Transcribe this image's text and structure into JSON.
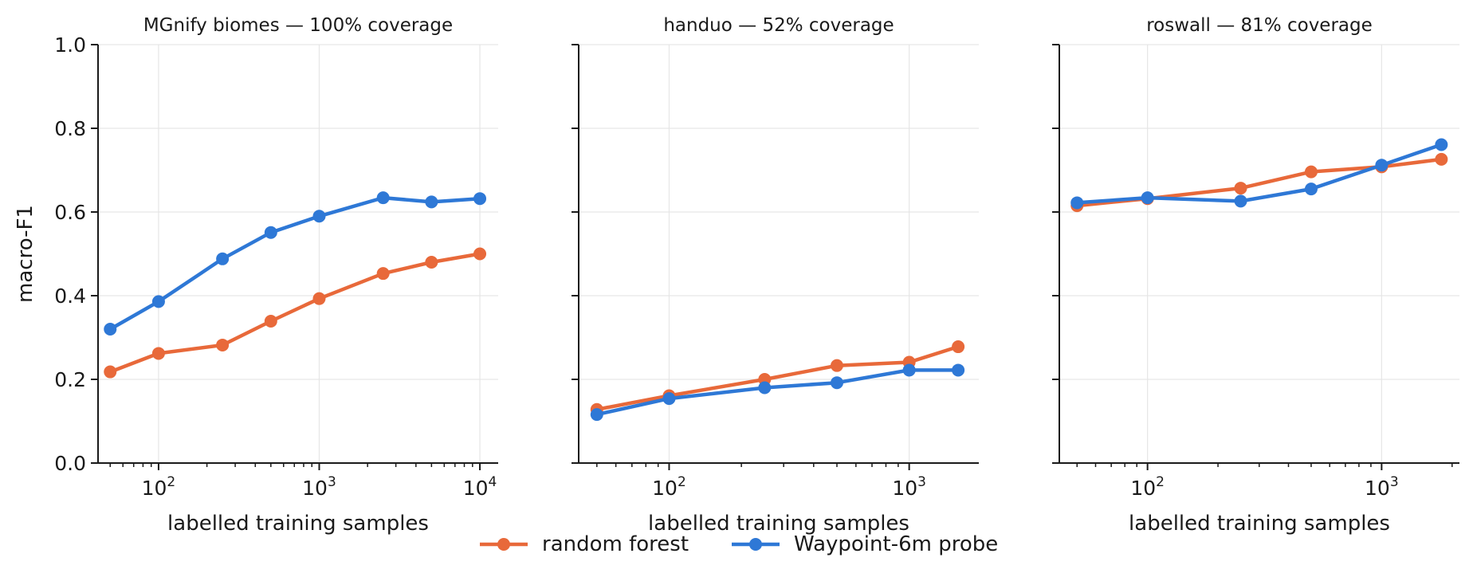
{
  "chart_data": [
    {
      "type": "line",
      "title": "MGnify biomes — 100% coverage",
      "xlabel": "labelled training samples",
      "ylabel": "macro-F1",
      "xscale": "log",
      "xlim": [
        42,
        13000
      ],
      "ylim": [
        0,
        1
      ],
      "xticks": [
        100,
        1000,
        10000
      ],
      "xtick_labels": [
        [
          "10",
          "2"
        ],
        [
          "10",
          "3"
        ],
        [
          "10",
          "4"
        ]
      ],
      "yticks": [
        0.0,
        0.2,
        0.4,
        0.6,
        0.8,
        1.0
      ],
      "ytick_labels": [
        "0.0",
        "0.2",
        "0.4",
        "0.6",
        "0.8",
        "1.0"
      ],
      "grid": true,
      "x": [
        50,
        100,
        250,
        500,
        1000,
        2500,
        5000,
        10000
      ],
      "series": [
        {
          "name": "random forest",
          "values": [
            0.218,
            0.262,
            0.282,
            0.339,
            0.393,
            0.453,
            0.48,
            0.5
          ]
        },
        {
          "name": "Waypoint-6m probe",
          "values": [
            0.32,
            0.386,
            0.488,
            0.551,
            0.59,
            0.634,
            0.624,
            0.632
          ]
        }
      ]
    },
    {
      "type": "line",
      "title": "handuo — 52% coverage",
      "xlabel": "labelled training samples",
      "ylabel": "",
      "xscale": "log",
      "xlim": [
        42,
        1950
      ],
      "ylim": [
        0,
        1
      ],
      "xticks": [
        100,
        1000
      ],
      "xtick_labels": [
        [
          "10",
          "2"
        ],
        [
          "10",
          "3"
        ]
      ],
      "yticks": [
        0.0,
        0.2,
        0.4,
        0.6,
        0.8,
        1.0
      ],
      "ytick_labels": [],
      "grid": true,
      "x": [
        50,
        100,
        250,
        500,
        1000,
        1600
      ],
      "series": [
        {
          "name": "random forest",
          "values": [
            0.128,
            0.161,
            0.2,
            0.233,
            0.241,
            0.278
          ]
        },
        {
          "name": "Waypoint-6m probe",
          "values": [
            0.116,
            0.154,
            0.18,
            0.192,
            0.222,
            0.222
          ]
        }
      ]
    },
    {
      "type": "line",
      "title": "roswall — 81% coverage",
      "xlabel": "labelled training samples",
      "ylabel": "",
      "xscale": "log",
      "xlim": [
        42,
        2150
      ],
      "ylim": [
        0,
        1
      ],
      "xticks": [
        100,
        1000
      ],
      "xtick_labels": [
        [
          "10",
          "2"
        ],
        [
          "10",
          "3"
        ]
      ],
      "yticks": [
        0.0,
        0.2,
        0.4,
        0.6,
        0.8,
        1.0
      ],
      "ytick_labels": [],
      "grid": true,
      "x": [
        50,
        100,
        250,
        500,
        1000,
        1800
      ],
      "series": [
        {
          "name": "random forest",
          "values": [
            0.615,
            0.632,
            0.657,
            0.696,
            0.708,
            0.726
          ]
        },
        {
          "name": "Waypoint-6m probe",
          "values": [
            0.622,
            0.634,
            0.626,
            0.655,
            0.712,
            0.761
          ]
        }
      ]
    }
  ],
  "legend": {
    "placement": "bottom-center",
    "items": [
      {
        "label": "random forest",
        "color": "#e8693a"
      },
      {
        "label": "Waypoint-6m probe",
        "color": "#2e78d6"
      }
    ]
  },
  "colors": {
    "random_forest": "#e8693a",
    "waypoint_probe": "#2e78d6",
    "grid": "#e6e6e6",
    "axis": "#1a1a1a"
  }
}
